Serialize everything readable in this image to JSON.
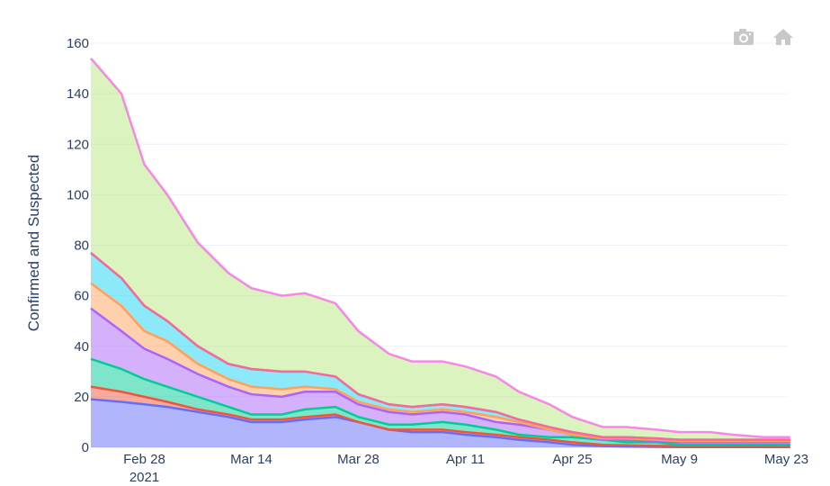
{
  "chart_data": {
    "type": "area",
    "stacked": true,
    "title": "",
    "xlabel": "",
    "ylabel": "Confirmed and Suspected",
    "ylim": [
      0,
      160
    ],
    "yticks": [
      0,
      20,
      40,
      60,
      80,
      100,
      120,
      140,
      160
    ],
    "xtick_labels": [
      "Feb 28\n2021",
      "Mar 14",
      "Mar 28",
      "Apr 11",
      "Apr 25",
      "May 9",
      "May 23"
    ],
    "xtick_days": [
      7,
      21,
      35,
      49,
      63,
      77,
      91
    ],
    "x_start": "2021-02-21",
    "x_days": [
      0,
      4,
      7,
      10,
      14,
      18,
      21,
      25,
      28,
      32,
      35,
      39,
      42,
      46,
      49,
      53,
      56,
      60,
      63,
      67,
      70,
      74,
      77,
      81,
      84,
      88,
      92
    ],
    "grid": true,
    "legend": "none",
    "series_cumulative_tops": [
      {
        "name": "series-1",
        "line": "#636efa",
        "fill": "rgba(99,110,250,0.5)",
        "values": [
          19,
          18,
          17,
          16,
          14,
          12,
          10,
          10,
          11,
          12,
          10,
          7,
          6,
          6,
          5,
          4,
          3,
          2,
          1,
          0.5,
          0.3,
          0.2,
          0.1,
          0.1,
          0.1,
          0.1,
          0.1
        ]
      },
      {
        "name": "series-2",
        "line": "#ef553b",
        "fill": "rgba(239,85,59,0.5)",
        "values": [
          24,
          22,
          20,
          18,
          15,
          13,
          11,
          11,
          12,
          13,
          10,
          7,
          7,
          7,
          6,
          5,
          4,
          3,
          2,
          1,
          0.8,
          0.6,
          0.5,
          0.5,
          0.5,
          0.5,
          0.5
        ]
      },
      {
        "name": "series-3",
        "line": "#00cc96",
        "fill": "rgba(0,204,150,0.5)",
        "values": [
          35,
          31,
          27,
          24,
          20,
          16,
          13,
          13,
          15,
          16,
          12,
          9,
          9,
          10,
          9,
          7,
          5,
          4,
          4,
          3,
          2,
          2,
          1,
          1,
          1,
          1,
          1
        ]
      },
      {
        "name": "series-4",
        "line": "#ab63fa",
        "fill": "rgba(171,99,250,0.5)",
        "values": [
          55,
          46,
          39,
          35,
          29,
          24,
          21,
          20,
          22,
          22,
          17,
          14,
          13,
          14,
          13,
          10,
          9,
          7,
          5,
          3,
          3,
          2.5,
          2,
          2,
          2,
          2,
          2
        ]
      },
      {
        "name": "series-5",
        "line": "#ffa15a",
        "fill": "rgba(255,161,90,0.5)",
        "values": [
          65,
          56,
          46,
          42,
          33,
          27,
          24,
          23,
          24,
          23,
          18,
          15,
          14,
          15,
          14,
          12,
          10,
          7,
          5,
          3.5,
          3.5,
          3,
          2.5,
          2.5,
          2.5,
          2.5,
          2.5
        ]
      },
      {
        "name": "series-6",
        "line": "#19d3f3",
        "fill": "rgba(25,211,243,0.5)",
        "values": [
          77,
          67,
          56,
          50,
          40,
          33,
          31,
          30,
          30,
          28,
          21,
          17,
          16,
          17,
          16,
          14,
          11,
          8,
          6,
          4,
          4,
          3.5,
          3,
          3,
          3,
          3,
          3
        ]
      },
      {
        "name": "series-7",
        "line": "#ff6692",
        "fill": "rgba(255,102,146,0.5)",
        "values": [
          77,
          67,
          56,
          50,
          40,
          33,
          31,
          30,
          30,
          28,
          21,
          17,
          16,
          17,
          16,
          14,
          11,
          8,
          6,
          4,
          4,
          3.5,
          3,
          3,
          3,
          3,
          3
        ]
      },
      {
        "name": "series-8",
        "line": "#f786e8",
        "fill": "rgba(182,232,128,0.5)",
        "values": [
          154,
          140,
          112,
          100,
          81,
          69,
          63,
          60,
          61,
          57,
          46,
          37,
          34,
          34,
          32,
          28,
          22,
          17,
          12,
          8,
          8,
          7,
          6,
          6,
          5,
          4,
          4
        ]
      }
    ]
  },
  "modebar": {
    "camera_title": "Download plot as a png",
    "home_title": "Reset axes"
  }
}
